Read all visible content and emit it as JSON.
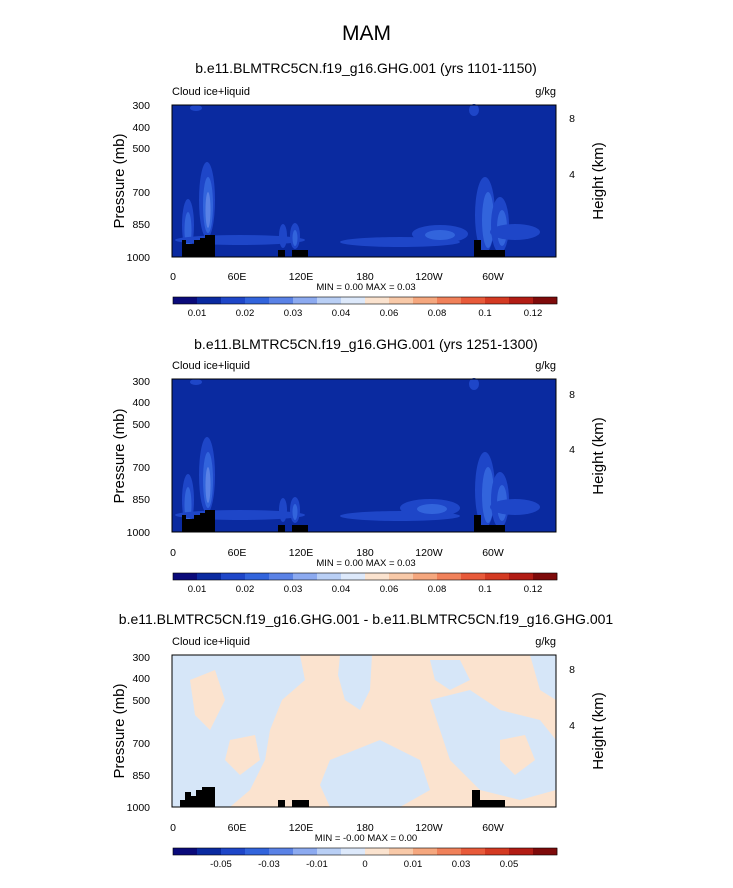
{
  "page_title": "MAM",
  "colors": {
    "background_field": "#0a2aa0",
    "land_mask": "#000000",
    "colorbar_positive": [
      "#0a0a7a",
      "#0a2aa0",
      "#1e46c8",
      "#3264dc",
      "#5a82e6",
      "#8caaf0",
      "#b9cff5",
      "#dde9fb",
      "#fbe3cf",
      "#f8c9a8",
      "#f5a77e",
      "#f0815a",
      "#e85a3a",
      "#d43a22",
      "#b21c14",
      "#7e0a0a"
    ],
    "diff_light_blue": "#d6e6f8",
    "diff_light_orange": "#fbe3cf"
  },
  "chart_data": [
    {
      "type": "heatmap",
      "title": "b.e11.BLMTRC5CN.f19_g16.GHG.001 (yrs 1101-1150)",
      "left_label": "Cloud ice+liquid",
      "right_label": "g/kg",
      "ylabel": "Pressure (mb)",
      "y2label": "Height (km)",
      "x_ticks": [
        "0",
        "60E",
        "120E",
        "180",
        "120W",
        "60W"
      ],
      "y_ticks": [
        "300",
        "400",
        "500",
        "700",
        "850",
        "1000"
      ],
      "y2_ticks": [
        "8",
        "4"
      ],
      "min_max": "MIN =   0.00  MAX =   0.03",
      "colorbar_labels": [
        "0.01",
        "0.02",
        "0.03",
        "0.04",
        "0.06",
        "0.08",
        "0.1",
        "0.12"
      ]
    },
    {
      "type": "heatmap",
      "title": "b.e11.BLMTRC5CN.f19_g16.GHG.001 (yrs 1251-1300)",
      "left_label": "Cloud ice+liquid",
      "right_label": "g/kg",
      "ylabel": "Pressure (mb)",
      "y2label": "Height (km)",
      "x_ticks": [
        "0",
        "60E",
        "120E",
        "180",
        "120W",
        "60W"
      ],
      "y_ticks": [
        "300",
        "400",
        "500",
        "700",
        "850",
        "1000"
      ],
      "y2_ticks": [
        "8",
        "4"
      ],
      "min_max": "MIN =   0.00  MAX =   0.03",
      "colorbar_labels": [
        "0.01",
        "0.02",
        "0.03",
        "0.04",
        "0.06",
        "0.08",
        "0.1",
        "0.12"
      ]
    },
    {
      "type": "heatmap",
      "title": "b.e11.BLMTRC5CN.f19_g16.GHG.001 - b.e11.BLMTRC5CN.f19_g16.GHG.001",
      "left_label": "Cloud ice+liquid",
      "right_label": "g/kg",
      "ylabel": "Pressure (mb)",
      "y2label": "Height (km)",
      "x_ticks": [
        "0",
        "60E",
        "120E",
        "180",
        "120W",
        "60W"
      ],
      "y_ticks": [
        "300",
        "400",
        "500",
        "700",
        "850",
        "1000"
      ],
      "y2_ticks": [
        "8",
        "4"
      ],
      "min_max": "MIN =  -0.00  MAX =   0.00",
      "colorbar_labels": [
        "-0.05",
        "-0.03",
        "-0.01",
        "0",
        "0.01",
        "0.03",
        "0.05"
      ]
    }
  ]
}
